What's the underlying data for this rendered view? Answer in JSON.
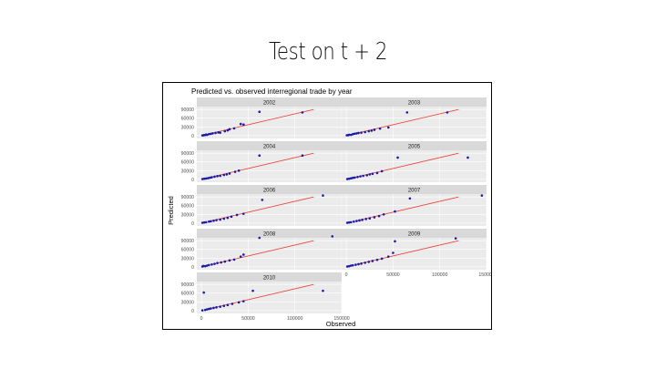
{
  "slide": {
    "title": "Test on t + 2"
  },
  "chart_data": {
    "type": "scatter",
    "title": "Predicted vs. observed interregional trade by year",
    "xlabel": "Observed",
    "ylabel": "Predicted",
    "xlim": [
      -5000,
      150000
    ],
    "ylim": [
      -10000,
      100000
    ],
    "x_ticks": [
      0,
      50000,
      100000,
      150000
    ],
    "x_tick_labels": [
      "0",
      "50000",
      "100000",
      "150000"
    ],
    "y_ticks": [
      0,
      30000,
      60000,
      90000
    ],
    "y_tick_labels": [
      "0",
      "30000",
      "60000",
      "90000"
    ],
    "point_color": "#1a1aa6",
    "line_color": "#e8473a",
    "panel_bg": "#ebebeb",
    "strip_bg": "#d9d9d9",
    "reference_line": {
      "slope": 0.75,
      "intercept": 0
    },
    "panels": [
      {
        "label": "2002",
        "points": [
          [
            1000,
            500
          ],
          [
            2500,
            1500
          ],
          [
            4000,
            2000
          ],
          [
            5000,
            3500
          ],
          [
            6000,
            2500
          ],
          [
            8000,
            5000
          ],
          [
            10000,
            6000
          ],
          [
            12000,
            7500
          ],
          [
            15000,
            9000
          ],
          [
            18000,
            11000
          ],
          [
            20000,
            10000
          ],
          [
            25000,
            15000
          ],
          [
            28000,
            18000
          ],
          [
            30000,
            22000
          ],
          [
            35000,
            25000
          ],
          [
            42000,
            40000
          ],
          [
            45000,
            38000
          ],
          [
            62000,
            82000
          ],
          [
            108000,
            80000
          ]
        ]
      },
      {
        "label": "2003",
        "points": [
          [
            500,
            1000
          ],
          [
            2000,
            1500
          ],
          [
            3000,
            3000
          ],
          [
            5000,
            2500
          ],
          [
            7000,
            5000
          ],
          [
            9000,
            6500
          ],
          [
            11000,
            7500
          ],
          [
            13000,
            9000
          ],
          [
            16000,
            10000
          ],
          [
            20000,
            12000
          ],
          [
            24000,
            15000
          ],
          [
            27000,
            17000
          ],
          [
            30000,
            20000
          ],
          [
            36000,
            24000
          ],
          [
            45000,
            28000
          ],
          [
            65000,
            80000
          ],
          [
            108000,
            80000
          ]
        ]
      },
      {
        "label": "2004",
        "points": [
          [
            1000,
            1000
          ],
          [
            3000,
            2000
          ],
          [
            5000,
            3000
          ],
          [
            7000,
            4000
          ],
          [
            9000,
            5500
          ],
          [
            11000,
            7000
          ],
          [
            14000,
            9000
          ],
          [
            17000,
            11000
          ],
          [
            20000,
            12000
          ],
          [
            24000,
            15000
          ],
          [
            27000,
            17000
          ],
          [
            30000,
            20000
          ],
          [
            36000,
            26000
          ],
          [
            40000,
            30000
          ],
          [
            62000,
            82000
          ],
          [
            108000,
            82000
          ]
        ]
      },
      {
        "label": "2005",
        "points": [
          [
            1000,
            1000
          ],
          [
            3000,
            2000
          ],
          [
            5000,
            3500
          ],
          [
            7000,
            5000
          ],
          [
            9000,
            6000
          ],
          [
            12000,
            8000
          ],
          [
            15000,
            10000
          ],
          [
            18000,
            12000
          ],
          [
            22000,
            14000
          ],
          [
            25000,
            17000
          ],
          [
            28000,
            19000
          ],
          [
            33000,
            22000
          ],
          [
            38000,
            28000
          ],
          [
            55000,
            75000
          ],
          [
            130000,
            75000
          ]
        ]
      },
      {
        "label": "2006",
        "points": [
          [
            1000,
            1000
          ],
          [
            3000,
            2000
          ],
          [
            5000,
            3000
          ],
          [
            8000,
            5000
          ],
          [
            10000,
            6000
          ],
          [
            13000,
            8000
          ],
          [
            16000,
            10000
          ],
          [
            20000,
            12000
          ],
          [
            24000,
            15000
          ],
          [
            28000,
            18000
          ],
          [
            32000,
            22000
          ],
          [
            38000,
            28000
          ],
          [
            45000,
            32000
          ],
          [
            65000,
            80000
          ],
          [
            130000,
            95000
          ]
        ]
      },
      {
        "label": "2007",
        "points": [
          [
            1000,
            1000
          ],
          [
            3000,
            2000
          ],
          [
            5000,
            3000
          ],
          [
            8000,
            5000
          ],
          [
            11000,
            7000
          ],
          [
            14000,
            9000
          ],
          [
            17000,
            11000
          ],
          [
            21000,
            14000
          ],
          [
            25000,
            16000
          ],
          [
            30000,
            20000
          ],
          [
            35000,
            24000
          ],
          [
            40000,
            30000
          ],
          [
            52000,
            40000
          ],
          [
            68000,
            85000
          ],
          [
            145000,
            95000
          ]
        ]
      },
      {
        "label": "2008",
        "points": [
          [
            1000,
            1000
          ],
          [
            2000,
            3000
          ],
          [
            4000,
            2000
          ],
          [
            6000,
            4000
          ],
          [
            8000,
            6000
          ],
          [
            11000,
            8000
          ],
          [
            14000,
            10000
          ],
          [
            17000,
            13000
          ],
          [
            21000,
            15000
          ],
          [
            25000,
            18000
          ],
          [
            30000,
            22000
          ],
          [
            35000,
            25000
          ],
          [
            42000,
            35000
          ],
          [
            45000,
            42000
          ],
          [
            62000,
            100000
          ],
          [
            140000,
            105000
          ]
        ]
      },
      {
        "label": "2009",
        "points": [
          [
            1000,
            1000
          ],
          [
            3000,
            2000
          ],
          [
            5000,
            4000
          ],
          [
            7000,
            5000
          ],
          [
            10000,
            7000
          ],
          [
            13000,
            9000
          ],
          [
            16000,
            11000
          ],
          [
            20000,
            14000
          ],
          [
            24000,
            17000
          ],
          [
            28000,
            20000
          ],
          [
            33000,
            24000
          ],
          [
            38000,
            28000
          ],
          [
            45000,
            35000
          ],
          [
            50000,
            48000
          ],
          [
            52000,
            88000
          ],
          [
            117000,
            98000
          ]
        ]
      },
      {
        "label": "2010",
        "points": [
          [
            1000,
            500
          ],
          [
            2500,
            62000
          ],
          [
            4000,
            2000
          ],
          [
            6000,
            4000
          ],
          [
            8000,
            5500
          ],
          [
            10000,
            7000
          ],
          [
            13000,
            9000
          ],
          [
            16000,
            11000
          ],
          [
            20000,
            13000
          ],
          [
            24000,
            16000
          ],
          [
            28000,
            19000
          ],
          [
            33000,
            23000
          ],
          [
            40000,
            28000
          ],
          [
            45000,
            32000
          ],
          [
            55000,
            68000
          ],
          [
            130000,
            68000
          ]
        ]
      }
    ]
  }
}
